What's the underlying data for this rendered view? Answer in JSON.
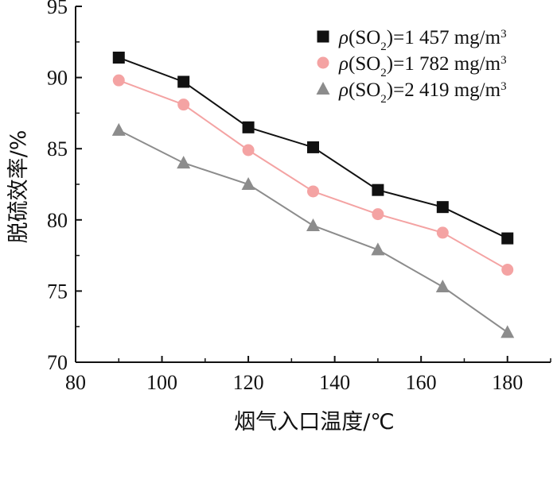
{
  "chart_data": {
    "type": "line",
    "xlabel": "烟气入口温度/℃",
    "ylabel": "脱硫效率/%",
    "xlim": [
      80,
      190
    ],
    "ylim": [
      70,
      95
    ],
    "xticks": [
      80,
      100,
      120,
      140,
      160,
      180
    ],
    "yticks": [
      70,
      75,
      80,
      85,
      90,
      95
    ],
    "x": [
      90,
      105,
      120,
      135,
      150,
      165,
      180
    ],
    "grid": false,
    "legend_position": "top-right",
    "series": [
      {
        "legend": {
          "rho": "ρ",
          "open": "(SO",
          "sub": "2",
          "rest": ")=1 457 mg/m",
          "sup": "3"
        },
        "values": [
          91.4,
          89.7,
          86.5,
          85.1,
          82.1,
          80.9,
          78.7
        ],
        "marker": "square",
        "color": "#111111"
      },
      {
        "legend": {
          "rho": "ρ",
          "open": "(SO",
          "sub": "2",
          "rest": ")=1 782 mg/m",
          "sup": "3"
        },
        "values": [
          89.8,
          88.1,
          84.9,
          82.0,
          80.4,
          79.1,
          76.5
        ],
        "marker": "circle",
        "color": "#f4a3a3"
      },
      {
        "legend": {
          "rho": "ρ",
          "open": "(SO",
          "sub": "2",
          "rest": ")=2 419 mg/m",
          "sup": "3"
        },
        "values": [
          86.3,
          84.0,
          82.5,
          79.6,
          77.9,
          75.3,
          72.1
        ],
        "marker": "triangle",
        "color": "#8c8c8c"
      }
    ]
  }
}
